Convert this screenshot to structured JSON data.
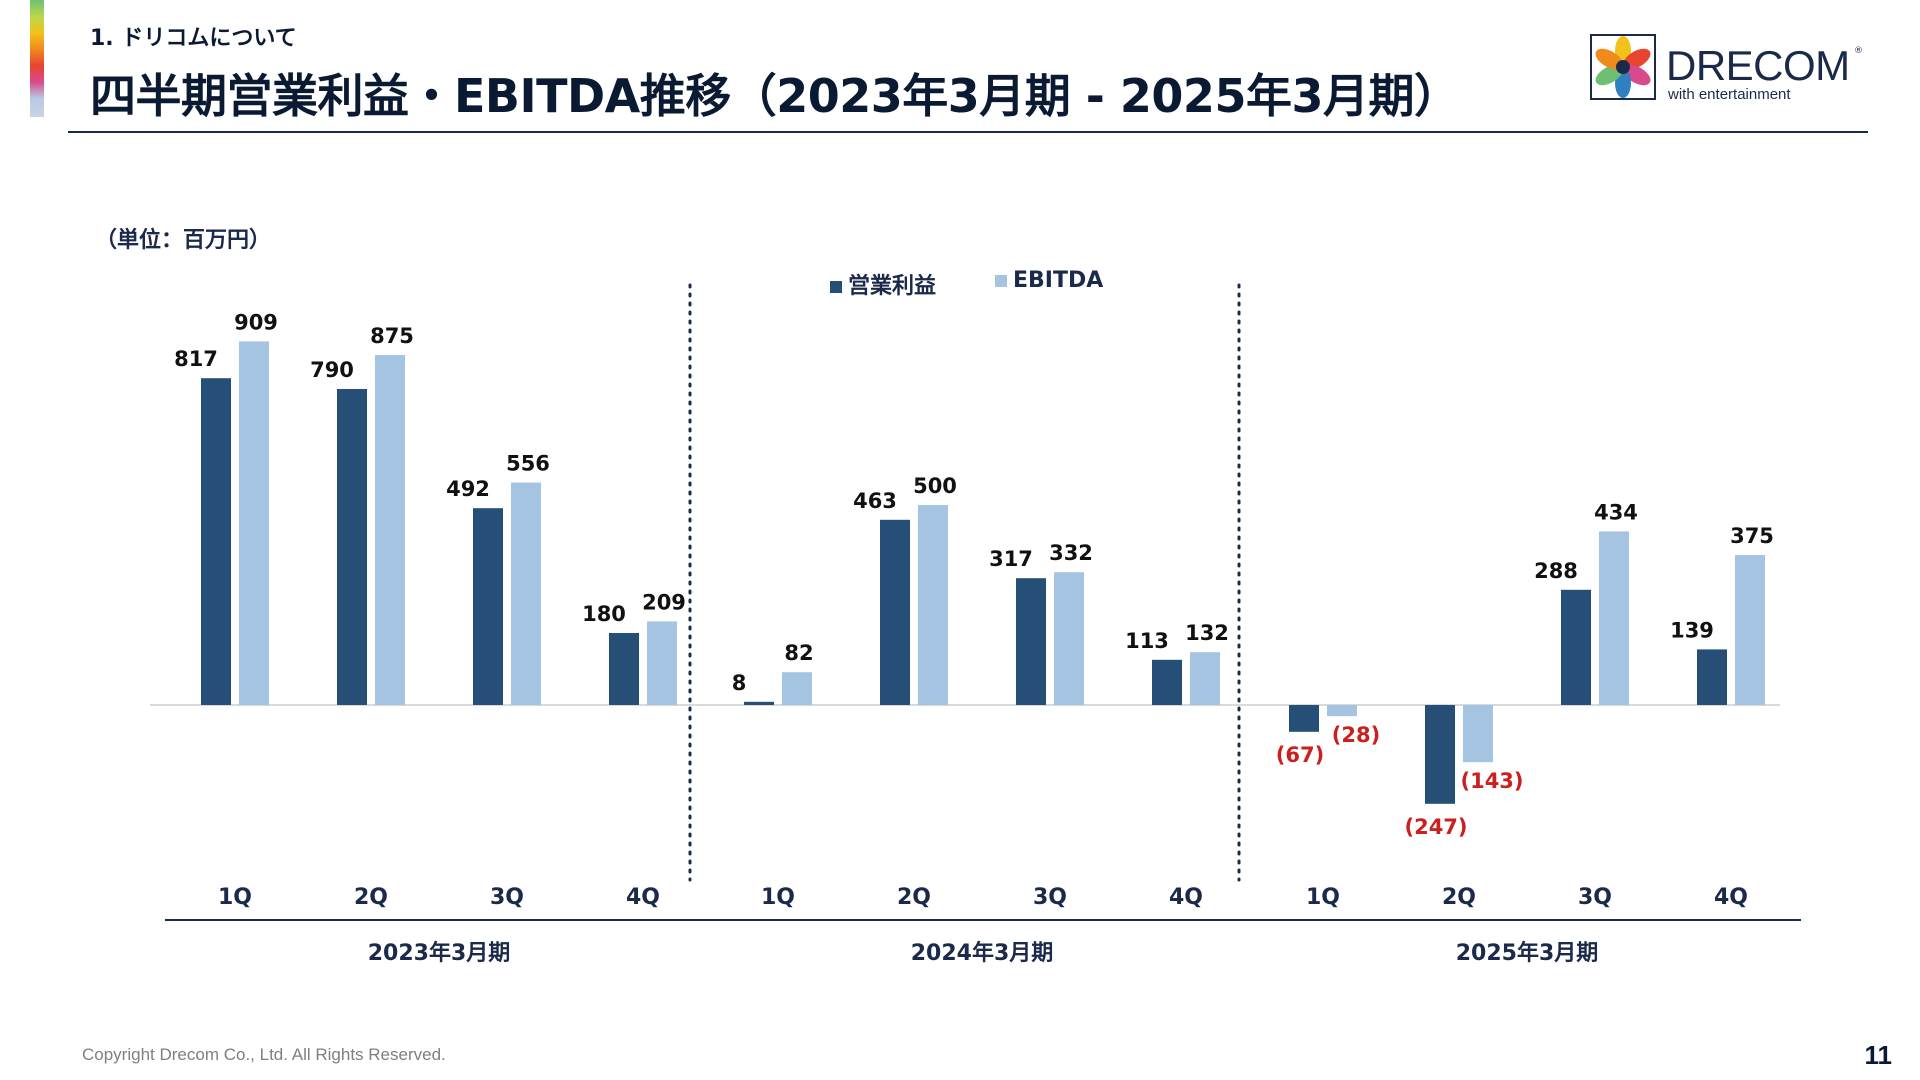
{
  "header": {
    "section": "1. ドリコムについて",
    "title": "四半期営業利益・EBITDA推移（2023年3月期 - 2025年3月期）"
  },
  "logo": {
    "name": "DRECOM",
    "tagline": "with entertainment",
    "tm": "®"
  },
  "unit_label": "（単位：百万円）",
  "legend": {
    "items": [
      {
        "label": "営業利益",
        "color": "#264f78"
      },
      {
        "label": "EBITDA",
        "color": "#a4c4e2"
      }
    ]
  },
  "footer": {
    "copyright": "Copyright Drecom Co., Ltd. All Rights Reserved.",
    "page": "11"
  },
  "chart_data": {
    "type": "bar",
    "title": "四半期営業利益・EBITDA推移（2023年3月期 - 2025年3月期）",
    "unit": "百万円",
    "groups": [
      {
        "label": "2023年3月期",
        "quarters": [
          "1Q",
          "2Q",
          "3Q",
          "4Q"
        ]
      },
      {
        "label": "2024年3月期",
        "quarters": [
          "1Q",
          "2Q",
          "3Q",
          "4Q"
        ]
      },
      {
        "label": "2025年3月期",
        "quarters": [
          "1Q",
          "2Q",
          "3Q",
          "4Q"
        ]
      }
    ],
    "series": [
      {
        "name": "営業利益",
        "color": "#264f78",
        "values": [
          817,
          790,
          492,
          180,
          8,
          463,
          317,
          113,
          -67,
          -247,
          288,
          139
        ],
        "labels": [
          "817",
          "790",
          "492",
          "180",
          "8",
          "463",
          "317",
          "113",
          "(67)",
          "(247)",
          "288",
          "139"
        ]
      },
      {
        "name": "EBITDA",
        "color": "#a4c4e2",
        "values": [
          909,
          875,
          556,
          209,
          82,
          500,
          332,
          132,
          -28,
          -143,
          434,
          375
        ],
        "labels": [
          "909",
          "875",
          "556",
          "209",
          "82",
          "500",
          "332",
          "132",
          "(28)",
          "(143)",
          "434",
          "375"
        ]
      }
    ],
    "negative_label_color": "#cc1f1f",
    "ylim": [
      -300,
      950
    ],
    "grid": false
  }
}
